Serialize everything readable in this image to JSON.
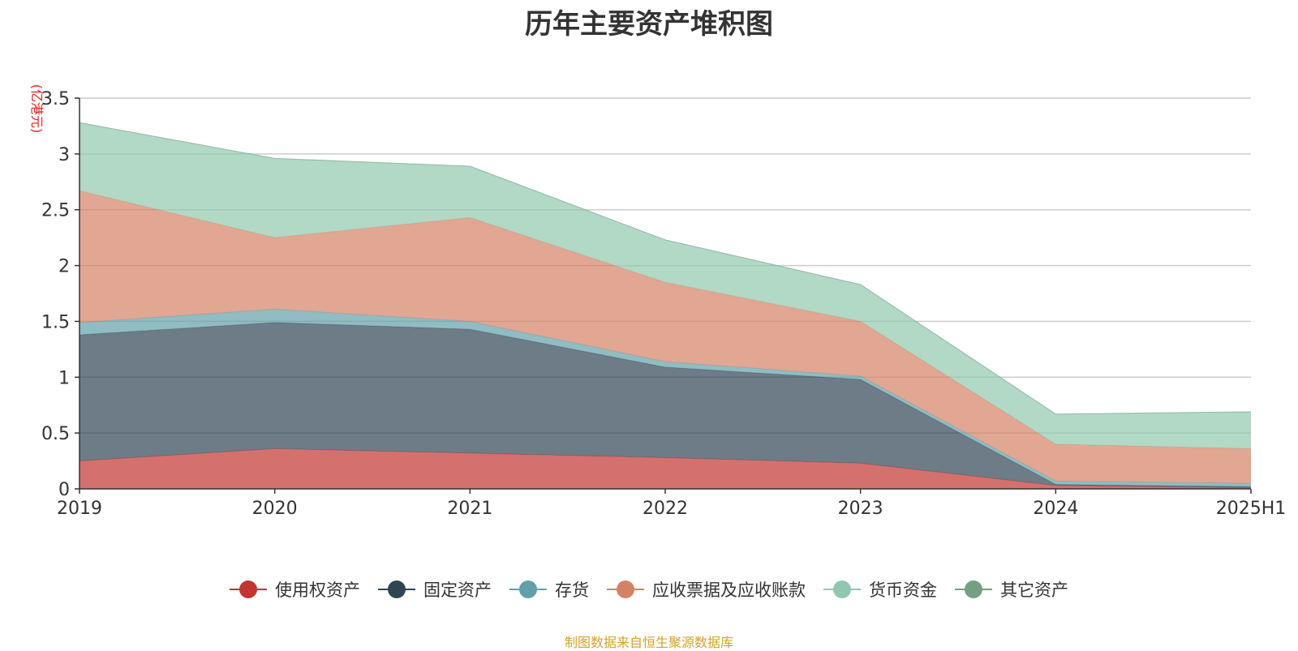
{
  "chart_data": {
    "type": "area",
    "title": "历年主要资产堆积图",
    "ylabel": "(亿港元)",
    "categories": [
      "2019",
      "2020",
      "2021",
      "2022",
      "2023",
      "2024",
      "2025H1"
    ],
    "ylim": [
      0,
      3.5
    ],
    "yticks": [
      "0",
      "0.5",
      "1",
      "1.5",
      "2",
      "2.5",
      "3",
      "3.5"
    ],
    "stacked": true,
    "grid": true,
    "legend_position": "bottom",
    "series": [
      {
        "name": "使用权资产",
        "color": "#c23531",
        "values": [
          0.25,
          0.36,
          0.32,
          0.28,
          0.23,
          0.03,
          0.01
        ]
      },
      {
        "name": "固定资产",
        "color": "#2f4554",
        "values": [
          1.13,
          1.13,
          1.11,
          0.81,
          0.75,
          0.01,
          0.01
        ]
      },
      {
        "name": "存货",
        "color": "#61a0a8",
        "values": [
          0.11,
          0.12,
          0.07,
          0.05,
          0.03,
          0.03,
          0.03
        ]
      },
      {
        "name": "应收票据及应收账款",
        "color": "#d48265",
        "values": [
          1.18,
          0.64,
          0.93,
          0.71,
          0.49,
          0.33,
          0.31
        ]
      },
      {
        "name": "货币资金",
        "color": "#91c7ae",
        "values": [
          0.61,
          0.71,
          0.46,
          0.38,
          0.33,
          0.27,
          0.33
        ]
      },
      {
        "name": "其它资产",
        "color": "#749f83",
        "values": [
          0,
          0,
          0,
          0,
          0,
          0,
          0
        ]
      }
    ]
  },
  "source": "制图数据来自恒生聚源数据库"
}
